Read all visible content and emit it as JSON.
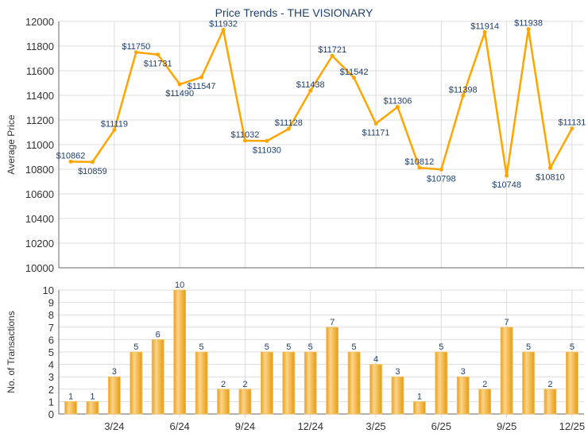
{
  "chart_data": [
    {
      "type": "line",
      "title": "Price Trends - THE VISIONARY",
      "ylabel": "Average Price",
      "xlabel": "",
      "ylim": [
        10000,
        12000
      ],
      "yticks": [
        10000,
        10200,
        10400,
        10600,
        10800,
        11000,
        11200,
        11400,
        11600,
        11800,
        12000
      ],
      "grid": true,
      "color": "#FFA500",
      "values": [
        10862,
        10859,
        11119,
        11750,
        11731,
        11490,
        11547,
        11932,
        11032,
        11030,
        11128,
        11438,
        11721,
        11542,
        11171,
        11306,
        10812,
        10798,
        11398,
        11914,
        10748,
        11938,
        10810,
        11131
      ],
      "labels": [
        "$10862",
        "$10859",
        "$11119",
        "$11750",
        "$11731",
        "$11490",
        "$11547",
        "$11932",
        "$11032",
        "$11030",
        "$11128",
        "$11438",
        "$11721",
        "$11542",
        "$11171",
        "$11306",
        "$10812",
        "$10798",
        "$11398",
        "$11914",
        "$10748",
        "$11938",
        "$10810",
        "$11131"
      ]
    },
    {
      "type": "bar",
      "ylabel": "No. of Transactions",
      "ylim": [
        0,
        10
      ],
      "yticks": [
        0,
        1,
        2,
        3,
        4,
        5,
        6,
        7,
        8,
        9,
        10
      ],
      "grid": true,
      "color": "#F0A820",
      "values": [
        1,
        1,
        3,
        5,
        6,
        10,
        5,
        2,
        2,
        5,
        5,
        5,
        7,
        5,
        4,
        3,
        1,
        5,
        3,
        2,
        7,
        5,
        2,
        5
      ],
      "xticks": [
        {
          "index": 2,
          "label": "3/24"
        },
        {
          "index": 5,
          "label": "6/24"
        },
        {
          "index": 8,
          "label": "9/24"
        },
        {
          "index": 11,
          "label": "12/24"
        },
        {
          "index": 14,
          "label": "3/25"
        },
        {
          "index": 17,
          "label": "6/25"
        },
        {
          "index": 20,
          "label": "9/25"
        },
        {
          "index": 23,
          "label": "12/25"
        }
      ]
    }
  ]
}
